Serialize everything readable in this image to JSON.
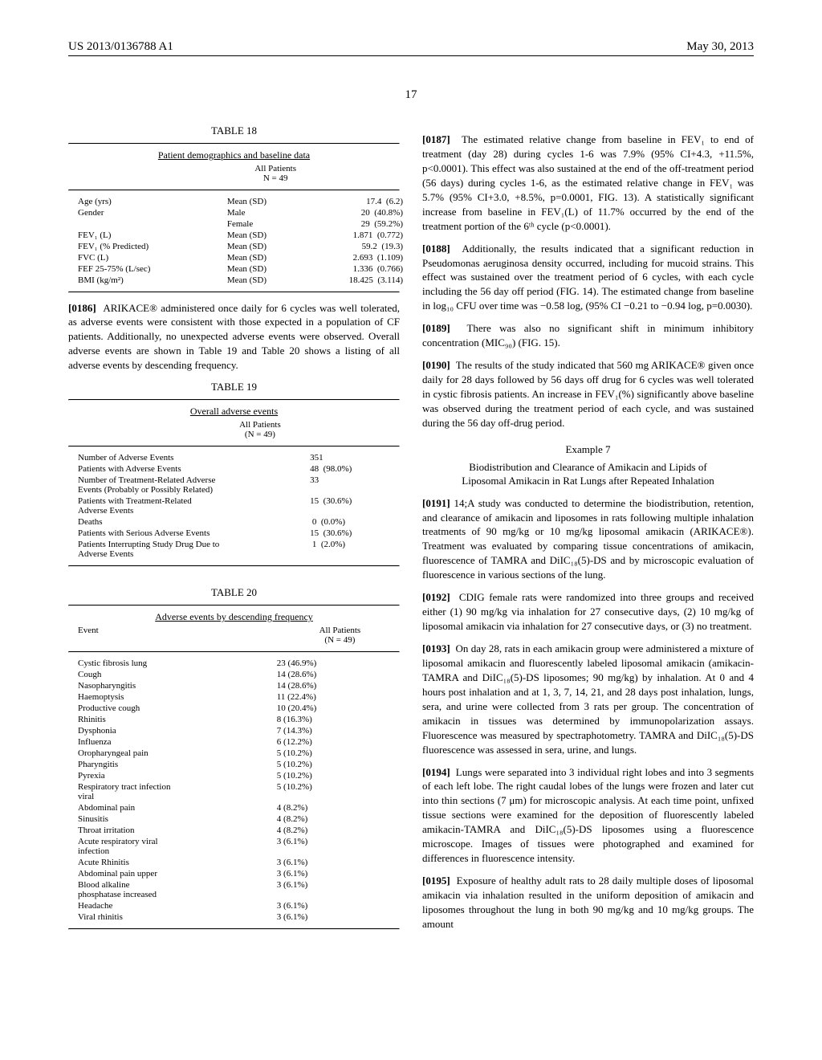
{
  "header": {
    "pub_no": "US 2013/0136788 A1",
    "page_no": "17",
    "date": "May 30, 2013"
  },
  "table18": {
    "title": "TABLE 18",
    "subtitle": "Patient demographics and baseline data",
    "header_col": "All Patients\nN = 49",
    "rows": [
      {
        "label": "Age (yrs)",
        "stat": "Mean (SD)",
        "val": "17.4  (6.2)"
      },
      {
        "label": "Gender",
        "stat": "Male",
        "val": "20  (40.8%)"
      },
      {
        "label": "",
        "stat": "Female",
        "val": "29  (59.2%)"
      },
      {
        "label": "FEV₁ (L)",
        "stat": "Mean (SD)",
        "val": "1.871  (0.772)"
      },
      {
        "label": "FEV₁ (% Predicted)",
        "stat": "Mean (SD)",
        "val": "59.2  (19.3)"
      },
      {
        "label": "FVC (L)",
        "stat": "Mean (SD)",
        "val": "2.693  (1.109)"
      },
      {
        "label": "FEF 25-75% (L/sec)",
        "stat": "Mean (SD)",
        "val": "1.336  (0.766)"
      },
      {
        "label": "BMI (kg/m²)",
        "stat": "Mean (SD)",
        "val": "18.425  (3.114)"
      }
    ]
  },
  "para0186": {
    "num": "[0186]",
    "text": "ARIKACE® administered once daily for 6 cycles was well tolerated, as adverse events were consistent with those expected in a population of CF patients. Additionally, no unexpected adverse events were observed. Overall adverse events are shown in Table 19 and Table 20 shows a listing of all adverse events by descending frequency."
  },
  "table19": {
    "title": "TABLE 19",
    "subtitle": "Overall adverse events",
    "header_col": "All Patients\n(N = 49)",
    "rows": [
      {
        "label": "Number of Adverse Events",
        "val": "351"
      },
      {
        "label": "Patients with Adverse Events",
        "val": "48  (98.0%)"
      },
      {
        "label": "Number of Treatment-Related Adverse\nEvents (Probably or Possibly Related)",
        "val": "33"
      },
      {
        "label": "Patients with Treatment-Related\nAdverse Events",
        "val": "15  (30.6%)"
      },
      {
        "label": "Deaths",
        "val": " 0  (0.0%)"
      },
      {
        "label": "Patients with Serious Adverse Events",
        "val": "15  (30.6%)"
      },
      {
        "label": "Patients Interrupting Study Drug Due to\nAdverse Events",
        "val": " 1  (2.0%)"
      }
    ]
  },
  "table20": {
    "title": "TABLE 20",
    "subtitle": "Adverse events by descending frequency",
    "col_event": "Event",
    "col_all": "All Patients\n(N = 49)",
    "rows": [
      {
        "event": "Cystic fibrosis lung",
        "val": "23 (46.9%)"
      },
      {
        "event": "Cough",
        "val": "14 (28.6%)"
      },
      {
        "event": "Nasopharyngitis",
        "val": "14 (28.6%)"
      },
      {
        "event": "Haemoptysis",
        "val": "11 (22.4%)"
      },
      {
        "event": "Productive cough",
        "val": "10 (20.4%)"
      },
      {
        "event": "Rhinitis",
        "val": "8 (16.3%)"
      },
      {
        "event": "Dysphonia",
        "val": "7 (14.3%)"
      },
      {
        "event": "Influenza",
        "val": "6 (12.2%)"
      },
      {
        "event": "Oropharyngeal pain",
        "val": "5 (10.2%)"
      },
      {
        "event": "Pharyngitis",
        "val": "5 (10.2%)"
      },
      {
        "event": "Pyrexia",
        "val": "5 (10.2%)"
      },
      {
        "event": "Respiratory tract infection\nviral",
        "val": "5 (10.2%)"
      },
      {
        "event": "Abdominal pain",
        "val": "4 (8.2%)"
      },
      {
        "event": "Sinusitis",
        "val": "4 (8.2%)"
      },
      {
        "event": "Throat irritation",
        "val": "4 (8.2%)"
      },
      {
        "event": "Acute respiratory viral\ninfection",
        "val": "3 (6.1%)"
      },
      {
        "event": "Acute Rhinitis",
        "val": "3 (6.1%)"
      },
      {
        "event": "Abdominal pain upper",
        "val": "3 (6.1%)"
      },
      {
        "event": "Blood alkaline\nphosphatase increased",
        "val": "3 (6.1%)"
      },
      {
        "event": "Headache",
        "val": "3 (6.1%)"
      },
      {
        "event": "Viral rhinitis",
        "val": "3 (6.1%)"
      }
    ]
  },
  "para0187": {
    "num": "[0187]",
    "text": "The estimated relative change from baseline in FEV₁ to end of treatment (day 28) during cycles 1-6 was 7.9% (95% CI+4.3, +11.5%, p<0.0001). This effect was also sustained at the end of the off-treatment period (56 days) during cycles 1-6, as the estimated relative change in FEV₁ was 5.7% (95% CI+3.0, +8.5%, p=0.0001, FIG. 13). A statistically significant increase from baseline in FEV₁(L) of 11.7% occurred by the end of the treatment portion of the 6ᵗʰ cycle (p<0.0001)."
  },
  "para0188": {
    "num": "[0188]",
    "text": "Additionally, the results indicated that a significant reduction in Pseudomonas aeruginosa density occurred, including for mucoid strains. This effect was sustained over the treatment period of 6 cycles, with each cycle including the 56 day off period (FIG. 14). The estimated change from baseline in log₁₀ CFU over time was −0.58 log, (95% CI −0.21 to −0.94 log, p=0.0030)."
  },
  "para0189": {
    "num": "[0189]",
    "text": "There was also no significant shift in minimum inhibitory concentration (MIC₉₀) (FIG. 15)."
  },
  "para0190": {
    "num": "[0190]",
    "text": "The results of the study indicated that 560 mg ARIKACE® given once daily for 28 days followed by 56 days off drug for 6 cycles was well tolerated in cystic fibrosis patients. An increase in FEV₁(%) significantly above baseline was observed during the treatment period of each cycle, and was sustained during the 56 day off-drug period."
  },
  "example7": {
    "label": "Example 7",
    "title": "Biodistribution and Clearance of Amikacin and Lipids of Liposomal Amikacin in Rat Lungs after Repeated Inhalation"
  },
  "para0191": {
    "num": "[0191]",
    "text": "A study was conducted to determine the biodistribution, retention, and clearance of amikacin and liposomes in rats following multiple inhalation treatments of 90 mg/kg or 10 mg/kg liposomal amikacin (ARIKACE®). Treatment was evaluated by comparing tissue concentrations of amikacin, fluorescence of TAMRA and DiIC₁₈(5)-DS and by microscopic evaluation of fluorescence in various sections of the lung."
  },
  "para0192": {
    "num": "[0192]",
    "text": "CDIG female rats were randomized into three groups and received either (1) 90 mg/kg via inhalation for 27 consecutive days, (2) 10 mg/kg of liposomal amikacin via inhalation for 27 consecutive days, or (3) no treatment."
  },
  "para0193": {
    "num": "[0193]",
    "text": "On day 28, rats in each amikacin group were administered a mixture of liposomal amikacin and fluorescently labeled liposomal amikacin (amikacin-TAMRA and DiIC₁₈(5)-DS liposomes; 90 mg/kg) by inhalation. At 0 and 4 hours post inhalation and at 1, 3, 7, 14, 21, and 28 days post inhalation, lungs, sera, and urine were collected from 3 rats per group. The concentration of amikacin in tissues was determined by immunopolarization assays. Fluorescence was measured by spectraphotometry. TAMRA and DiIC₁₈(5)-DS fluorescence was assessed in sera, urine, and lungs."
  },
  "para0194": {
    "num": "[0194]",
    "text": "Lungs were separated into 3 individual right lobes and into 3 segments of each left lobe. The right caudal lobes of the lungs were frozen and later cut into thin sections (7 μm) for microscopic analysis. At each time point, unfixed tissue sections were examined for the deposition of fluorescently labeled amikacin-TAMRA and DiIC₁₈(5)-DS liposomes using a fluorescence microscope. Images of tissues were photographed and examined for differences in fluorescence intensity."
  },
  "para0195": {
    "num": "[0195]",
    "text": "Exposure of healthy adult rats to 28 daily multiple doses of liposomal amikacin via inhalation resulted in the uniform deposition of amikacin and liposomes throughout the lung in both 90 mg/kg and 10 mg/kg groups. The amount"
  }
}
